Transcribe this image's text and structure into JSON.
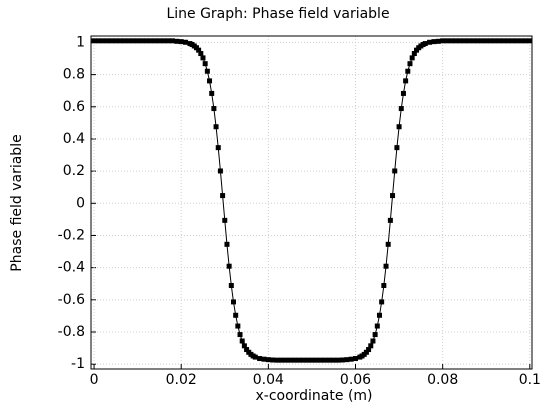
{
  "chart_data": {
    "type": "line",
    "title": "Line Graph: Phase field variable",
    "x_label": "x-coordinate (m)",
    "y_label": "Phase field variable",
    "xlim": [
      -0.0007,
      0.1005
    ],
    "ylim": [
      -1.03,
      1.04
    ],
    "xticks": [
      0,
      0.02,
      0.04,
      0.06,
      0.08,
      0.1
    ],
    "yticks": [
      1,
      0.8,
      0.6,
      0.4,
      0.2,
      0,
      -0.2,
      -0.4,
      -0.6,
      -0.8,
      -1
    ],
    "grid": true,
    "series": [
      {
        "color": "#000000",
        "x": [
          0,
          0.001,
          0.002,
          0.003,
          0.004,
          0.005,
          0.006,
          0.007,
          0.008,
          0.009,
          0.01,
          0.011,
          0.012,
          0.013,
          0.014,
          0.015,
          0.016,
          0.017,
          0.018,
          0.019,
          0.02,
          0.021,
          0.022,
          0.0225,
          0.023,
          0.0235,
          0.024,
          0.0245,
          0.025,
          0.0255,
          0.026,
          0.0265,
          0.027,
          0.0275,
          0.028,
          0.0285,
          0.029,
          0.0295,
          0.03,
          0.0305,
          0.031,
          0.0315,
          0.032,
          0.0325,
          0.033,
          0.0335,
          0.034,
          0.0345,
          0.035,
          0.0355,
          0.036,
          0.0365,
          0.037,
          0.038,
          0.039,
          0.04,
          0.041,
          0.042,
          0.043,
          0.044,
          0.045,
          0.046,
          0.047,
          0.048,
          0.049,
          0.05,
          0.051,
          0.052,
          0.053,
          0.054,
          0.055,
          0.056,
          0.057,
          0.058,
          0.059,
          0.06,
          0.061,
          0.0615,
          0.062,
          0.0625,
          0.063,
          0.0635,
          0.064,
          0.0645,
          0.065,
          0.0655,
          0.066,
          0.0665,
          0.067,
          0.0675,
          0.068,
          0.0685,
          0.069,
          0.0695,
          0.07,
          0.0705,
          0.071,
          0.0715,
          0.072,
          0.0725,
          0.073,
          0.0735,
          0.074,
          0.0745,
          0.075,
          0.0755,
          0.076,
          0.077,
          0.078,
          0.079,
          0.08,
          0.081,
          0.082,
          0.083,
          0.084,
          0.085,
          0.086,
          0.087,
          0.088,
          0.089,
          0.09,
          0.091,
          0.092,
          0.093,
          0.094,
          0.095,
          0.096,
          0.097,
          0.098,
          0.099,
          0.1
        ],
        "values": [
          1.01,
          1.01,
          1.01,
          1.01,
          1.01,
          1.01,
          1.01,
          1.01,
          1.01,
          1.01,
          1.01,
          1.01,
          1.01,
          1.01,
          1.01,
          1.01,
          1.01,
          1.01,
          1.01,
          1.007,
          1.005,
          1.001,
          0.993,
          0.987,
          0.978,
          0.967,
          0.952,
          0.931,
          0.904,
          0.868,
          0.821,
          0.761,
          0.683,
          0.589,
          0.476,
          0.346,
          0.201,
          0.048,
          -0.106,
          -0.255,
          -0.391,
          -0.511,
          -0.613,
          -0.696,
          -0.763,
          -0.816,
          -0.856,
          -0.886,
          -0.909,
          -0.926,
          -0.939,
          -0.949,
          -0.956,
          -0.965,
          -0.969,
          -0.972,
          -0.974,
          -0.975,
          -0.975,
          -0.975,
          -0.975,
          -0.975,
          -0.975,
          -0.975,
          -0.975,
          -0.975,
          -0.975,
          -0.975,
          -0.975,
          -0.975,
          -0.975,
          -0.975,
          -0.974,
          -0.972,
          -0.969,
          -0.965,
          -0.956,
          -0.949,
          -0.939,
          -0.926,
          -0.909,
          -0.886,
          -0.856,
          -0.816,
          -0.763,
          -0.696,
          -0.613,
          -0.511,
          -0.391,
          -0.255,
          -0.106,
          0.048,
          0.201,
          0.346,
          0.476,
          0.589,
          0.683,
          0.761,
          0.821,
          0.868,
          0.904,
          0.931,
          0.952,
          0.967,
          0.978,
          0.987,
          0.993,
          1.001,
          1.005,
          1.007,
          1.01,
          1.01,
          1.01,
          1.01,
          1.01,
          1.01,
          1.01,
          1.01,
          1.01,
          1.01,
          1.01,
          1.01,
          1.01,
          1.01,
          1.01,
          1.01,
          1.01,
          1.01,
          1.01,
          1.01,
          1.01
        ]
      }
    ]
  }
}
